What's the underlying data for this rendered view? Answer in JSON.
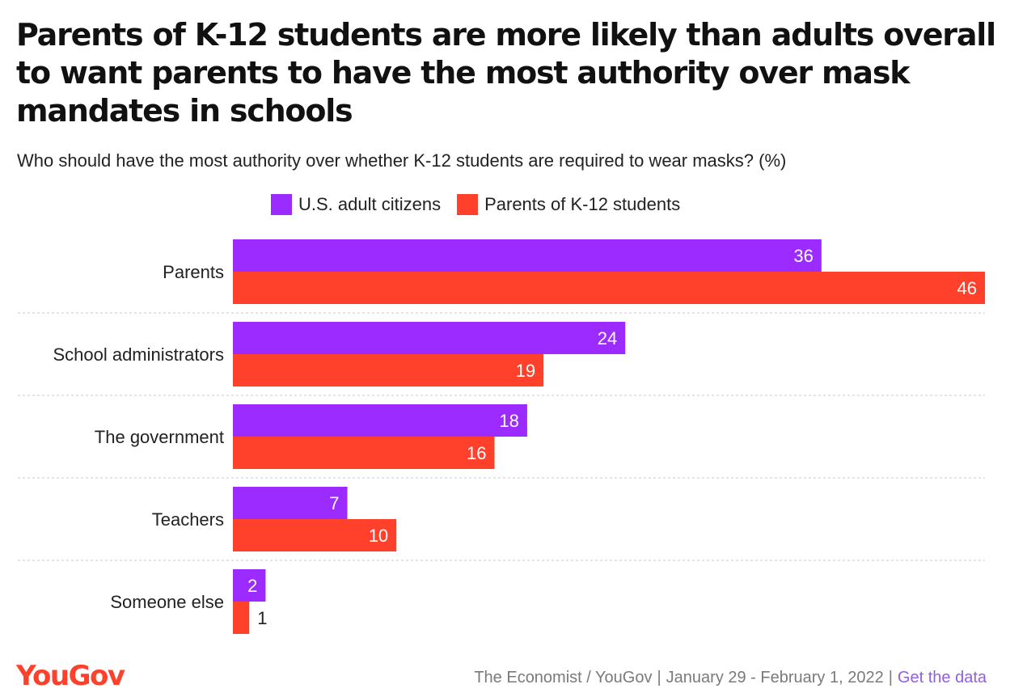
{
  "title": "Parents of K-12 students are more likely than adults overall to want parents to have the most authority over mask mandates in schools",
  "subtitle": "Who should have the most authority over whether K-12 students are required to wear masks? (%)",
  "legend": {
    "adults_label": "U.S. adult citizens",
    "parents_label": "Parents of K-12 students"
  },
  "colors": {
    "adults": "#9b2bff",
    "parents": "#ff412c",
    "logo": "#ff412c",
    "link": "#8f5fe6"
  },
  "chart_data": {
    "type": "bar",
    "orientation": "horizontal",
    "categories": [
      "Parents",
      "School administrators",
      "The government",
      "Teachers",
      "Someone else"
    ],
    "series": [
      {
        "name": "U.S. adult citizens",
        "values": [
          36,
          24,
          18,
          7,
          2
        ]
      },
      {
        "name": "Parents of K-12 students",
        "values": [
          46,
          19,
          16,
          10,
          1
        ]
      }
    ],
    "xlim": [
      0,
      46
    ],
    "grid": false,
    "legend_position": "top"
  },
  "footer": {
    "logo": "YouGov",
    "source": "The Economist / YouGov",
    "dates": "January 29 - February 1, 2022",
    "link": "Get the data"
  }
}
